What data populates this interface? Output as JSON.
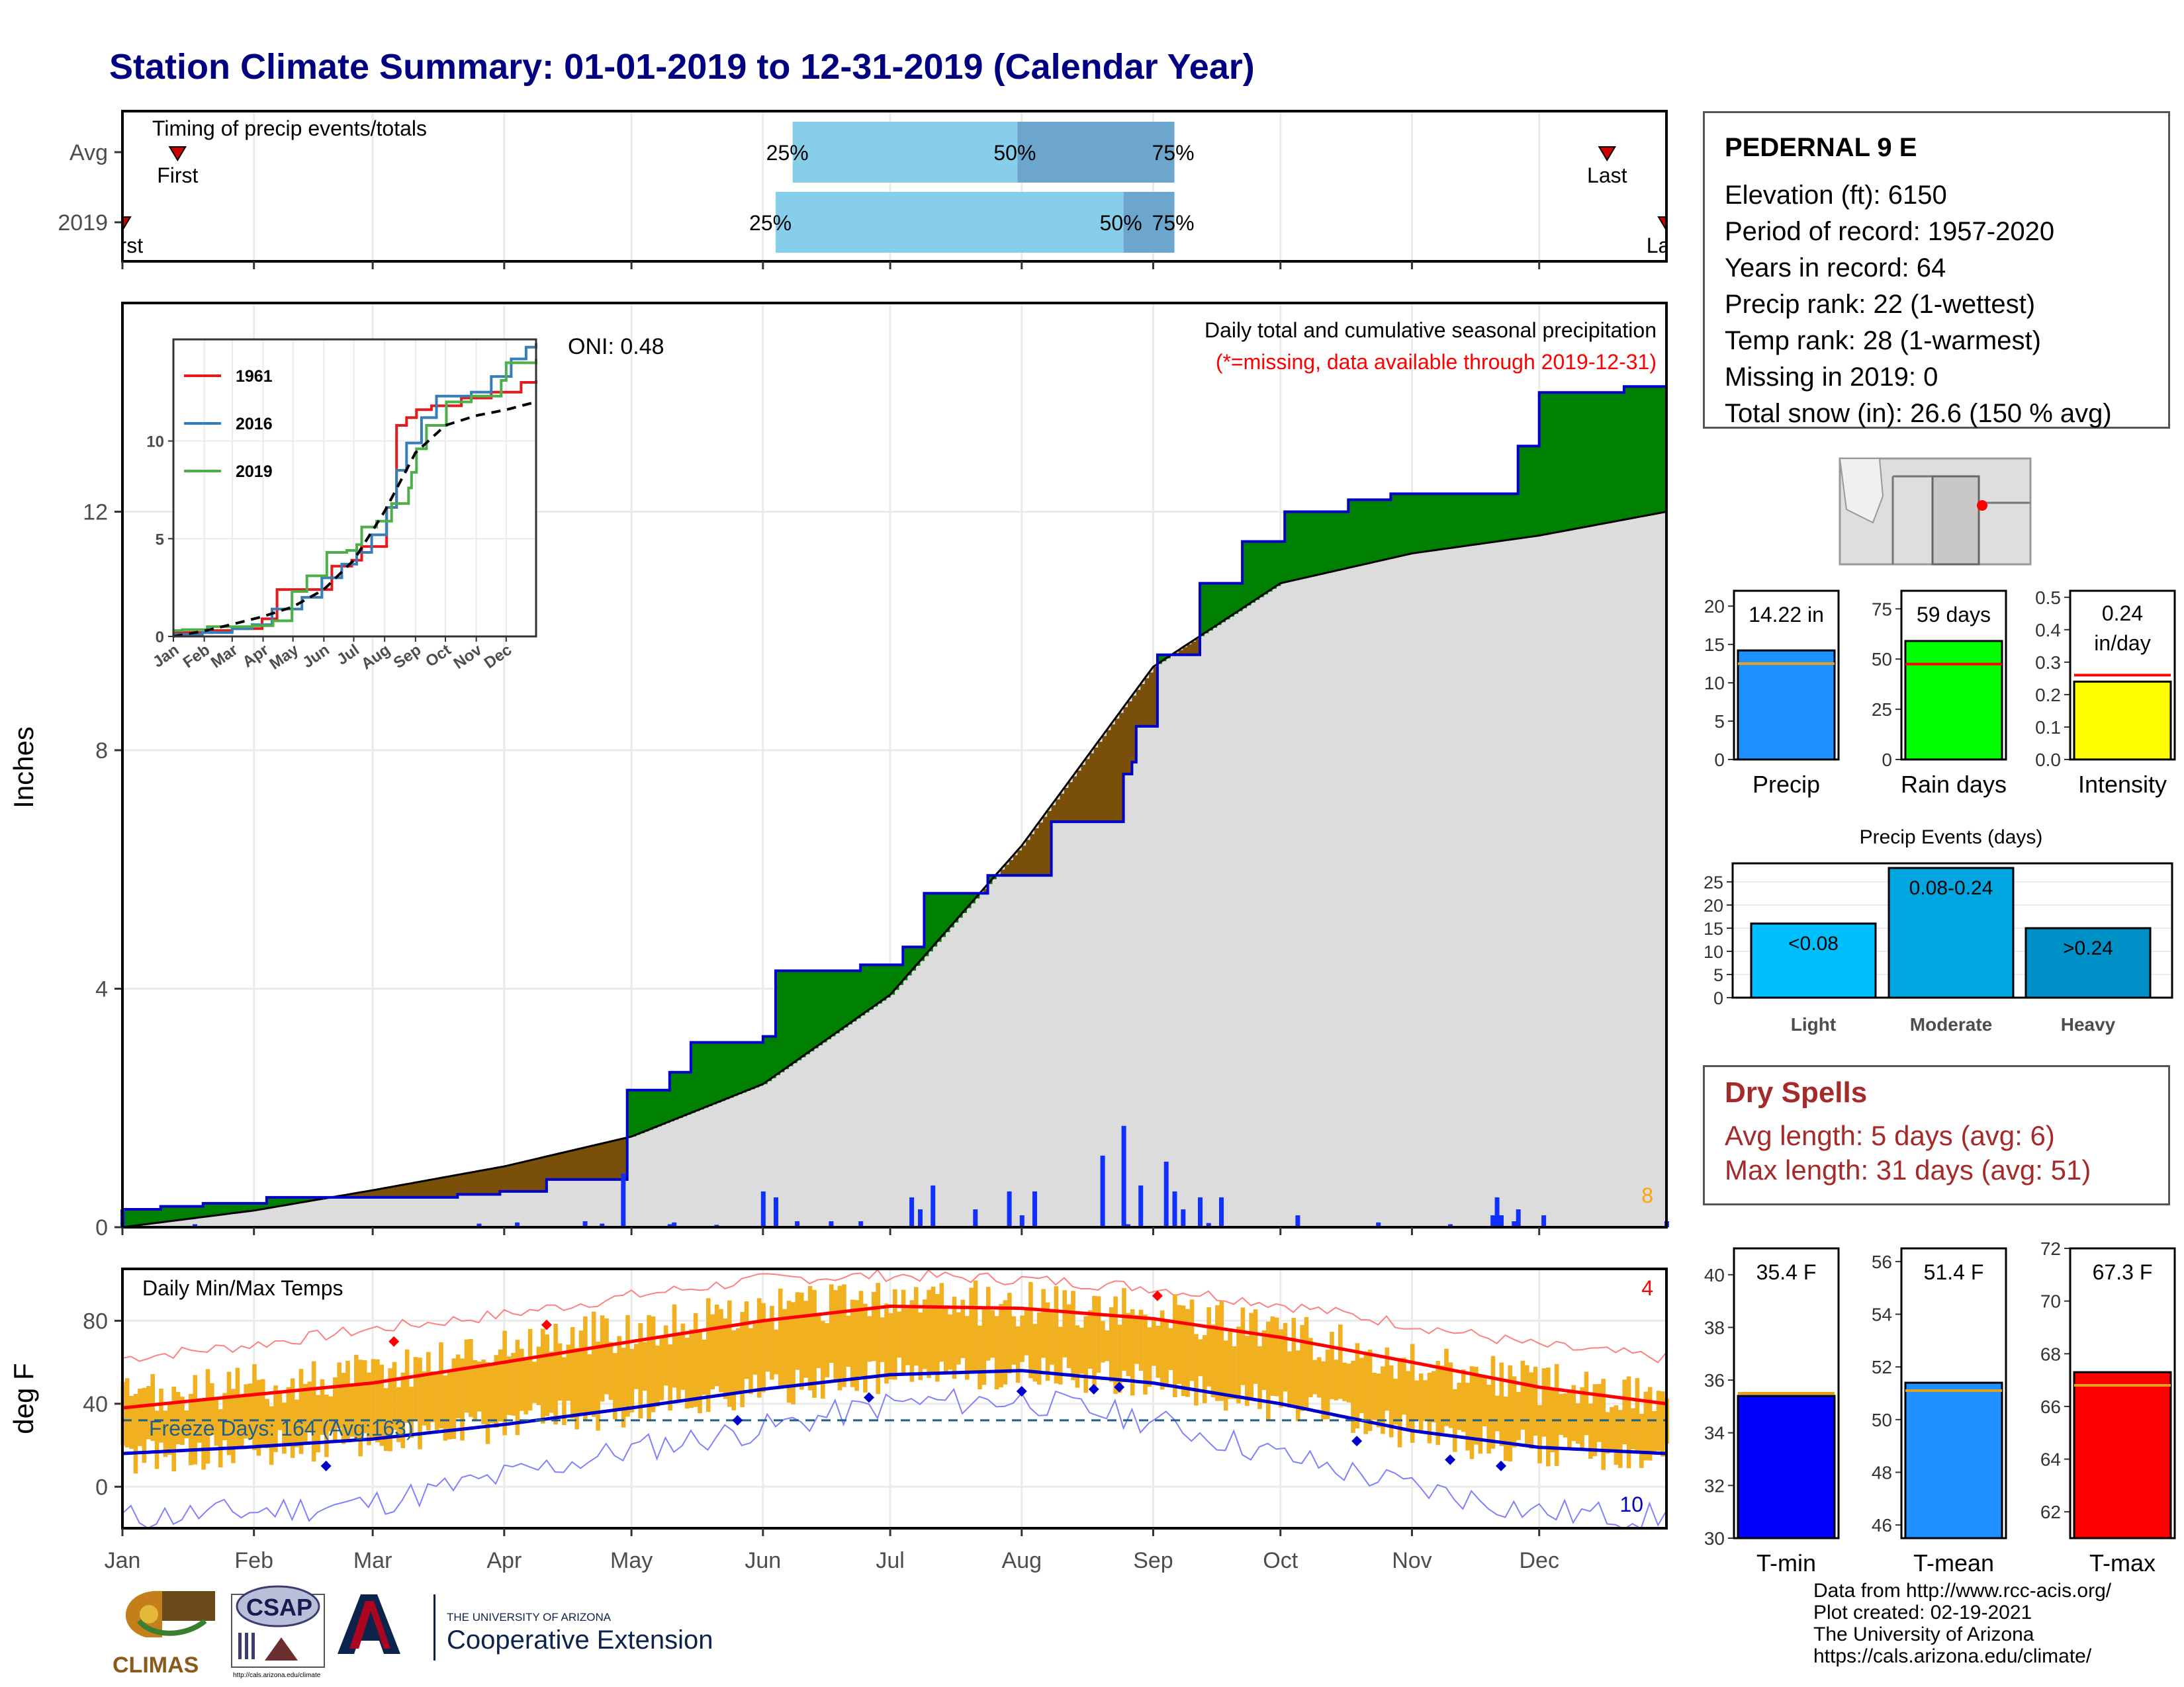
{
  "title": "Station Climate Summary: 01-01-2019 to 12-31-2019 (Calendar Year)",
  "months": [
    "Jan",
    "Feb",
    "Mar",
    "Apr",
    "May",
    "Jun",
    "Jul",
    "Aug",
    "Sep",
    "Oct",
    "Nov",
    "Dec"
  ],
  "station": {
    "name": "PEDERNAL 9 E",
    "lines": [
      "Elevation (ft): 6150",
      "Period of record: 1957-2020",
      "Years in record: 64",
      "Precip rank: 22 (1-wettest)",
      "Temp rank: 28 (1-warmest)",
      "Missing in 2019: 0",
      "Total snow (in): 26.6 (150 % avg)"
    ]
  },
  "dry_spells": {
    "title": "Dry Spells",
    "avg": "Avg length: 5 days (avg: 6)",
    "max": "Max length: 31 days (avg: 51)"
  },
  "credits": [
    "Data from http://www.rcc-acis.org/",
    "Plot created: 02-19-2021",
    "The University of Arizona",
    "https://cals.arizona.edu/climate/"
  ],
  "logos": {
    "climas": "CLIMAS",
    "csap": "CSAP",
    "csap_url": "http://cals.arizona.edu/climate",
    "ua_small": "THE UNIVERSITY OF ARIZONA",
    "ua_ext": "Cooperative Extension"
  },
  "colors": {
    "title": "#000080",
    "above_normal": "#008000",
    "below_normal": "#7a4f0a",
    "cumulative_line": "#0000cc",
    "normal_fill": "#dcdcdc",
    "tmax": "#ff0000",
    "tmin": "#0000cc",
    "temp_bars": "#f0b020"
  },
  "chart_data": [
    {
      "type": "bar",
      "name": "timing",
      "title": "Timing of precip events/totals",
      "rows": [
        {
          "label": "Avg",
          "first": "First",
          "last": "Last",
          "first_date": "01-14",
          "last_date": "12-17",
          "p25_date": "06-08",
          "p50_date": "07-31",
          "p75_date": "09-06",
          "p25": "25%",
          "p50": "50%",
          "p75": "75%"
        },
        {
          "label": "2019",
          "first": "First",
          "last": "Last",
          "first_date": "01-01",
          "last_date": "12-31",
          "p25_date": "06-04",
          "p50_date": "08-25",
          "p75_date": "09-06",
          "p25": "25%",
          "p50": "50%",
          "p75": "75%"
        }
      ]
    },
    {
      "type": "area",
      "name": "precip",
      "title": "Daily total and cumulative seasonal precipitation",
      "subtitle": "(*=missing, data available through 2019-12-31)",
      "oni": "ONI: 0.48",
      "ylabel": "Inches",
      "ylim": [
        0,
        15.5
      ],
      "yticks": [
        0,
        4,
        8,
        12
      ],
      "corner_count": "8",
      "normal_cumulative": {
        "day": [
          1,
          32,
          60,
          91,
          121,
          152,
          182,
          213,
          244,
          274,
          305,
          335,
          365
        ],
        "value": [
          0.0,
          0.28,
          0.62,
          1.02,
          1.52,
          2.4,
          3.9,
          6.4,
          9.4,
          10.8,
          11.3,
          11.6,
          12.0
        ]
      },
      "cumulative_2019": {
        "day": [
          1,
          10,
          20,
          35,
          60,
          80,
          90,
          101,
          110,
          120,
          125,
          130,
          135,
          144,
          152,
          155,
          169,
          175,
          180,
          185,
          190,
          200,
          205,
          210,
          220,
          230,
          237,
          239,
          240,
          242,
          245,
          250,
          255,
          265,
          275,
          290,
          300,
          325,
          330,
          335,
          340,
          355,
          365
        ],
        "value": [
          0.3,
          0.35,
          0.4,
          0.5,
          0.5,
          0.55,
          0.6,
          0.8,
          0.8,
          2.3,
          2.3,
          2.6,
          3.1,
          3.1,
          3.2,
          4.3,
          4.3,
          4.4,
          4.4,
          4.7,
          5.6,
          5.6,
          5.9,
          5.9,
          6.8,
          6.8,
          7.6,
          7.8,
          8.4,
          8.4,
          9.6,
          9.6,
          10.8,
          11.5,
          12.0,
          12.2,
          12.3,
          12.3,
          13.1,
          14.0,
          14.0,
          14.1,
          14.2
        ]
      },
      "daily_2019": {
        "day": [
          1,
          18,
          85,
          94,
          110,
          114,
          119,
          130,
          131,
          141,
          152,
          155,
          160,
          168,
          175,
          187,
          189,
          192,
          202,
          210,
          213,
          216,
          232,
          237,
          238,
          241,
          247,
          249,
          251,
          255,
          257,
          260,
          278,
          297,
          314,
          324,
          325,
          326,
          329,
          330,
          336,
          365
        ],
        "value": [
          0.3,
          0.05,
          0.06,
          0.08,
          0.1,
          0.06,
          0.9,
          0.05,
          0.08,
          0.04,
          0.6,
          0.5,
          0.1,
          0.1,
          0.1,
          0.5,
          0.3,
          0.7,
          0.3,
          0.6,
          0.2,
          0.6,
          1.2,
          1.7,
          0.05,
          0.7,
          1.1,
          0.6,
          0.3,
          0.5,
          0.07,
          0.5,
          0.2,
          0.08,
          0.05,
          0.2,
          0.5,
          0.2,
          0.1,
          0.3,
          0.2,
          0.1
        ]
      },
      "inset": {
        "type": "line",
        "xlabels": [
          "Jan",
          "Feb",
          "Mar",
          "Apr",
          "May",
          "Jun",
          "Jul",
          "Aug",
          "Sep",
          "Oct",
          "Nov",
          "Dec"
        ],
        "yticks": [
          0,
          5,
          10
        ],
        "ylim": [
          0,
          15.2
        ],
        "series": [
          {
            "name": "1961",
            "color": "#e41a1c",
            "day": [
              1,
              40,
              60,
              90,
              105,
              120,
              150,
              160,
              180,
              190,
              200,
              215,
              225,
              235,
              245,
              260,
              290,
              320,
              350,
              365
            ],
            "value": [
              0.2,
              0.3,
              0.4,
              0.9,
              2.4,
              2.4,
              2.4,
              3.6,
              3.9,
              4.6,
              4.6,
              6.6,
              10.8,
              11.2,
              11.6,
              11.8,
              12.2,
              12.5,
              13.0,
              13.1
            ]
          },
          {
            "name": "2016",
            "color": "#377eb8",
            "day": [
              1,
              30,
              60,
              80,
              100,
              130,
              150,
              170,
              185,
              200,
              215,
              225,
              235,
              250,
              265,
              280,
              300,
              320,
              340,
              355,
              365
            ],
            "value": [
              0.1,
              0.2,
              0.4,
              0.6,
              1.4,
              2.0,
              3.0,
              3.7,
              4.3,
              5.2,
              6.6,
              8.5,
              9.9,
              11.2,
              12.3,
              12.3,
              12.5,
              13.3,
              14.2,
              14.8,
              15.0
            ]
          },
          {
            "name": "2019",
            "color": "#4daf4a",
            "day": [
              1,
              10,
              35,
              80,
              101,
              120,
              135,
              155,
              175,
              185,
              190,
              205,
              220,
              237,
              240,
              245,
              255,
              275,
              300,
              330,
              335,
              365
            ],
            "value": [
              0.3,
              0.35,
              0.5,
              0.55,
              0.8,
              2.3,
              3.1,
              4.3,
              4.4,
              4.7,
              5.6,
              5.9,
              6.8,
              7.6,
              8.4,
              9.6,
              10.8,
              12.0,
              12.3,
              13.1,
              14.0,
              14.2
            ]
          },
          {
            "name": "Avg",
            "dashed": true,
            "color": "#000000",
            "day": [
              1,
              32,
              60,
              91,
              121,
              152,
              182,
              213,
              244,
              274,
              305,
              335,
              365
            ],
            "value": [
              0.0,
              0.28,
              0.62,
              1.02,
              1.52,
              2.4,
              3.9,
              6.4,
              9.4,
              10.8,
              11.3,
              11.6,
              12.0
            ]
          }
        ]
      }
    },
    {
      "type": "line",
      "name": "temperature",
      "title": "Daily Min/Max Temps",
      "ylabel": "deg F",
      "ylim": [
        -20,
        105
      ],
      "yticks": [
        0,
        40,
        80
      ],
      "freeze_text": "Freeze Days: 164 (Avg:163)",
      "freeze_line": 32,
      "corner_high": "4",
      "corner_low": "10",
      "avg_tmax": {
        "day": [
          1,
          30,
          60,
          91,
          121,
          152,
          182,
          213,
          244,
          274,
          305,
          335,
          365
        ],
        "value": [
          38,
          44,
          50,
          60,
          70,
          80,
          87,
          86,
          81,
          72,
          60,
          48,
          40
        ]
      },
      "avg_tmin": {
        "day": [
          1,
          30,
          60,
          91,
          121,
          152,
          182,
          213,
          244,
          274,
          305,
          335,
          365
        ],
        "value": [
          16,
          19,
          23,
          30,
          38,
          47,
          54,
          56,
          50,
          40,
          27,
          19,
          16
        ]
      },
      "record_high": {
        "day": [
          1,
          30,
          60,
          91,
          121,
          152,
          182,
          213,
          244,
          274,
          305,
          335,
          365
        ],
        "value": [
          62,
          68,
          76,
          83,
          92,
          100,
          102,
          100,
          96,
          88,
          78,
          68,
          62
        ]
      },
      "record_low": {
        "day": [
          1,
          30,
          60,
          91,
          121,
          152,
          182,
          213,
          244,
          274,
          305,
          335,
          365
        ],
        "value": [
          -15,
          -12,
          -8,
          5,
          18,
          28,
          40,
          42,
          32,
          15,
          0,
          -12,
          -15
        ]
      },
      "range_2019": {
        "day": [
          1,
          30,
          60,
          91,
          121,
          152,
          182,
          213,
          244,
          274,
          305,
          335,
          365
        ],
        "max": [
          42,
          48,
          55,
          68,
          76,
          84,
          90,
          88,
          84,
          74,
          60,
          50,
          44
        ],
        "min": [
          14,
          18,
          22,
          30,
          38,
          47,
          54,
          56,
          50,
          40,
          26,
          18,
          14
        ]
      },
      "record_high_marks": {
        "day": [
          65,
          101,
          245
        ],
        "value": [
          70,
          78,
          92
        ]
      },
      "record_low_marks": {
        "day": [
          49,
          146,
          177,
          213,
          230,
          236,
          292,
          314,
          326
        ],
        "value": [
          10,
          32,
          43,
          46,
          47,
          48,
          22,
          13,
          10
        ]
      }
    },
    {
      "type": "bar",
      "name": "precip_totals",
      "categories": [
        "Precip",
        "Rain days",
        "Intensity"
      ],
      "panels": [
        {
          "category": "Precip",
          "value": 14.22,
          "avg": 12.5,
          "label": "14.22 in",
          "ylim": [
            0,
            22
          ],
          "yticks": [
            0,
            5,
            10,
            15,
            20
          ],
          "color": "#1e90ff"
        },
        {
          "category": "Rain days",
          "value": 59,
          "avg": 47.5,
          "label": "59 days",
          "ylim": [
            0,
            84
          ],
          "yticks": [
            0,
            25,
            50,
            75
          ],
          "color": "#00ff00"
        },
        {
          "category": "Intensity",
          "value": 0.24,
          "avg": 0.26,
          "label": "0.24 in/day",
          "ylim": [
            0,
            0.52
          ],
          "yticks": [
            0.0,
            0.1,
            0.2,
            0.3,
            0.4,
            0.5
          ],
          "color": "#ffff00"
        }
      ]
    },
    {
      "type": "bar",
      "name": "precip_events",
      "title": "Precip Events (days)",
      "categories": [
        "Light",
        "Moderate",
        "Heavy"
      ],
      "values": [
        16,
        28,
        15
      ],
      "bar_labels": [
        "<0.08",
        "0.08-0.24",
        ">0.24"
      ],
      "ylim": [
        0,
        29
      ],
      "yticks": [
        0,
        5,
        10,
        15,
        20,
        25
      ],
      "colors": [
        "#00bfff",
        "#00a6e0",
        "#0090c8"
      ]
    },
    {
      "type": "bar",
      "name": "temp_totals",
      "categories": [
        "T-min",
        "T-mean",
        "T-max"
      ],
      "panels": [
        {
          "category": "T-min",
          "value": 35.4,
          "avg": 35.5,
          "label": "35.4 F",
          "ylim": [
            30,
            41
          ],
          "yticks": [
            30,
            32,
            34,
            36,
            38,
            40
          ],
          "color": "#0000ff"
        },
        {
          "category": "T-mean",
          "value": 51.4,
          "avg": 51.1,
          "label": "51.4 F",
          "ylim": [
            45.5,
            56.5
          ],
          "yticks": [
            46,
            48,
            50,
            52,
            54,
            56
          ],
          "color": "#1e90ff"
        },
        {
          "category": "T-max",
          "value": 67.3,
          "avg": 66.8,
          "label": "67.3 F",
          "ylim": [
            61,
            72
          ],
          "yticks": [
            62,
            64,
            66,
            68,
            70,
            72
          ],
          "color": "#ff0000"
        }
      ]
    }
  ]
}
